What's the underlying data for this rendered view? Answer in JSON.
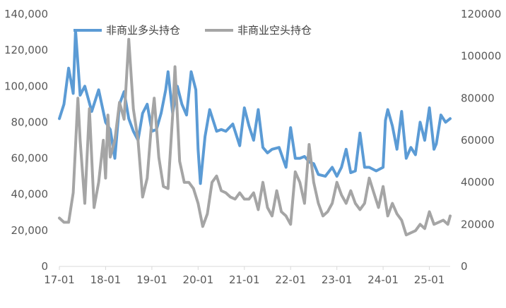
{
  "chart_data": {
    "type": "line",
    "x_axis": {
      "ticks": [
        "17-01",
        "18-01",
        "19-01",
        "20-01",
        "21-01",
        "22-01",
        "23-01",
        "24-01",
        "25-01"
      ]
    },
    "y_left": {
      "ylim": [
        0,
        140000
      ],
      "ticks": [
        "0",
        "20,000",
        "40,000",
        "60,000",
        "80,000",
        "100,000",
        "120,000",
        "140,000"
      ]
    },
    "y_right": {
      "ylim": [
        0,
        120000
      ],
      "ticks": [
        "0",
        "20000",
        "40000",
        "60000",
        "80000",
        "100000",
        "120000"
      ]
    },
    "legend_position": "top",
    "grid": false,
    "series": [
      {
        "name": "非商业多头持仓",
        "axis": "left",
        "color": "#5b9bd5",
        "x": [
          17.0,
          17.1,
          17.2,
          17.3,
          17.35,
          17.45,
          17.55,
          17.7,
          17.85,
          18.0,
          18.1,
          18.2,
          18.3,
          18.4,
          18.5,
          18.6,
          18.7,
          18.8,
          18.9,
          19.0,
          19.1,
          19.2,
          19.3,
          19.35,
          19.45,
          19.55,
          19.65,
          19.75,
          19.85,
          19.95,
          20.0,
          20.05,
          20.15,
          20.25,
          20.4,
          20.5,
          20.6,
          20.75,
          20.9,
          21.0,
          21.1,
          21.2,
          21.3,
          21.4,
          21.5,
          21.6,
          21.75,
          21.9,
          22.0,
          22.1,
          22.2,
          22.3,
          22.4,
          22.5,
          22.6,
          22.75,
          22.9,
          23.0,
          23.1,
          23.2,
          23.3,
          23.4,
          23.5,
          23.6,
          23.7,
          23.85,
          24.0,
          24.05,
          24.1,
          24.2,
          24.3,
          24.4,
          24.5,
          24.6,
          24.7,
          24.8,
          24.9,
          25.0,
          25.1,
          25.15,
          25.25,
          25.35,
          25.45
        ],
        "y": [
          82000,
          90000,
          110000,
          96000,
          131000,
          95000,
          100000,
          86000,
          98000,
          80000,
          76000,
          60000,
          90000,
          97000,
          82000,
          75000,
          70000,
          85000,
          90000,
          75000,
          76000,
          85000,
          98000,
          108000,
          85000,
          100000,
          90000,
          84000,
          108000,
          98000,
          65000,
          46000,
          72000,
          87000,
          75000,
          76000,
          75000,
          79000,
          67000,
          88000,
          78000,
          70000,
          87000,
          66000,
          63000,
          65000,
          66000,
          55000,
          77000,
          60000,
          60000,
          61000,
          58000,
          57000,
          51000,
          50000,
          55000,
          50000,
          55000,
          65000,
          52000,
          53000,
          74000,
          55000,
          55000,
          53000,
          55000,
          81000,
          87000,
          78000,
          65000,
          86000,
          60000,
          66000,
          62000,
          80000,
          70000,
          88000,
          65000,
          68000,
          84000,
          80000,
          82000
        ]
      },
      {
        "name": "非商业空头持仓",
        "axis": "right",
        "color": "#a5a5a5",
        "x": [
          17.0,
          17.1,
          17.2,
          17.3,
          17.4,
          17.45,
          17.55,
          17.65,
          17.75,
          17.85,
          17.95,
          18.0,
          18.05,
          18.1,
          18.2,
          18.3,
          18.4,
          18.5,
          18.6,
          18.7,
          18.8,
          18.9,
          19.0,
          19.05,
          19.15,
          19.25,
          19.35,
          19.45,
          19.5,
          19.6,
          19.7,
          19.8,
          19.9,
          20.0,
          20.1,
          20.2,
          20.3,
          20.4,
          20.5,
          20.6,
          20.7,
          20.8,
          20.9,
          21.0,
          21.1,
          21.2,
          21.3,
          21.4,
          21.5,
          21.6,
          21.7,
          21.8,
          21.9,
          22.0,
          22.1,
          22.2,
          22.3,
          22.4,
          22.5,
          22.6,
          22.7,
          22.8,
          22.9,
          23.0,
          23.1,
          23.2,
          23.3,
          23.4,
          23.5,
          23.6,
          23.7,
          23.8,
          23.9,
          24.0,
          24.1,
          24.2,
          24.3,
          24.4,
          24.5,
          24.6,
          24.7,
          24.8,
          24.9,
          25.0,
          25.1,
          25.2,
          25.3,
          25.4,
          25.45
        ],
        "y": [
          23000,
          21000,
          21000,
          35000,
          80000,
          60000,
          30000,
          75000,
          28000,
          40000,
          60000,
          42000,
          72000,
          52000,
          60000,
          78000,
          70000,
          108000,
          75000,
          60000,
          33000,
          42000,
          70000,
          80000,
          52000,
          38000,
          37000,
          72000,
          95000,
          50000,
          40000,
          40000,
          37000,
          30000,
          19000,
          25000,
          40000,
          43000,
          36000,
          35000,
          33000,
          32000,
          35000,
          32000,
          32000,
          35000,
          27000,
          40000,
          28000,
          24000,
          36000,
          26000,
          24000,
          20000,
          45000,
          40000,
          30000,
          58000,
          40000,
          30000,
          24000,
          26000,
          30000,
          40000,
          34000,
          30000,
          36000,
          30000,
          27000,
          30000,
          42000,
          35000,
          28000,
          38000,
          24000,
          30000,
          25000,
          22000,
          15000,
          16000,
          17000,
          20000,
          18000,
          26000,
          20000,
          21000,
          22000,
          20000,
          24000
        ]
      }
    ]
  }
}
